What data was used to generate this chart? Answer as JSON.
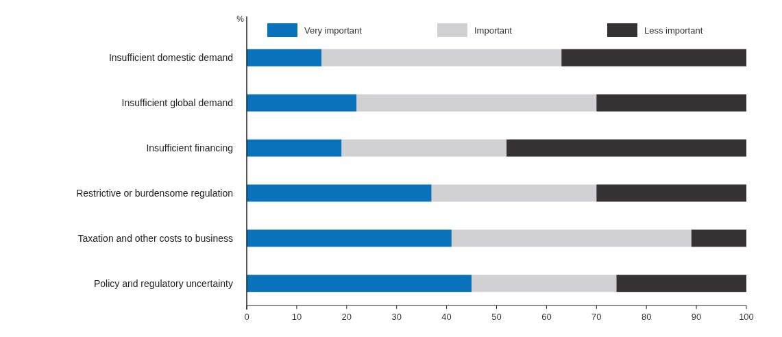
{
  "chart_data": {
    "type": "bar",
    "orientation": "horizontal",
    "stacked": true,
    "xlabel": "%",
    "categories": [
      "Insufficient domestic demand",
      "Insufficient global demand",
      "Insufficient financing",
      "Restrictive or burdensome regulation",
      "Taxation and other costs to business",
      "Policy and regulatory uncertainty"
    ],
    "series": [
      {
        "name": "Very important",
        "color": "#0a72ba",
        "values": [
          15,
          22,
          19,
          37,
          41,
          45
        ]
      },
      {
        "name": "Important",
        "color": "#d1d1d3",
        "values": [
          48,
          48,
          33,
          33,
          48,
          29
        ]
      },
      {
        "name": "Less important",
        "color": "#363233",
        "values": [
          37,
          30,
          48,
          30,
          11,
          26
        ]
      }
    ],
    "xlim": [
      0,
      100
    ],
    "xticks": [
      0,
      10,
      20,
      30,
      40,
      50,
      60,
      70,
      80,
      90,
      100
    ],
    "legend": "top",
    "grid": false
  }
}
